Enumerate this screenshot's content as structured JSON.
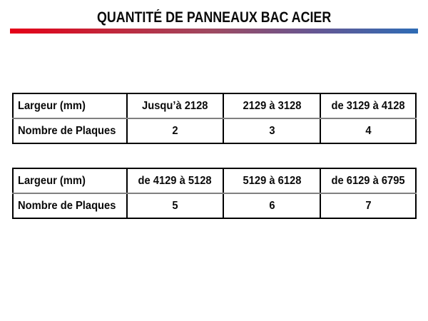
{
  "title": "QUANTITÉ DE PANNEAUX BAC ACIER",
  "divider_colors": {
    "left": "#e50017",
    "middle": "#9d4a62",
    "right": "#2e6cb5"
  },
  "tables": [
    {
      "rows": [
        [
          "Largeur (mm)",
          "Jusqu’à 2128",
          "2129 à 3128",
          "de 3129 à 4128"
        ],
        [
          "Nombre de Plaques",
          "2",
          "3",
          "4"
        ]
      ]
    },
    {
      "rows": [
        [
          "Largeur (mm)",
          "de 4129 à 5128",
          "5129 à 6128",
          "de 6129 à 6795"
        ],
        [
          "Nombre de Plaques",
          "5",
          "6",
          "7"
        ]
      ]
    }
  ]
}
